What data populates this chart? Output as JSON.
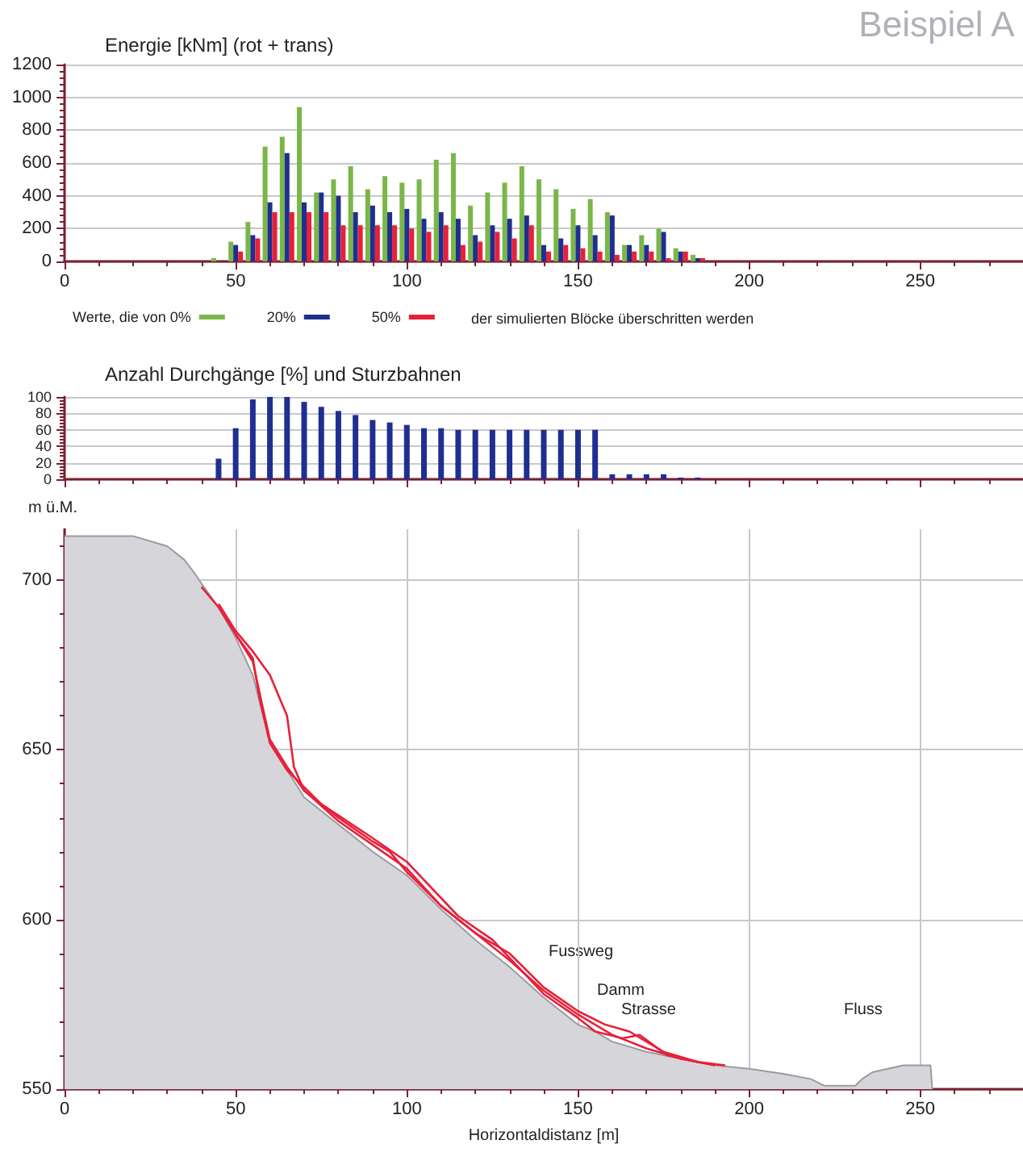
{
  "chart_data": [
    {
      "type": "bar",
      "title": "Energie [kNm] (rot + trans)",
      "annotations": [
        "Beispiel A",
        "der simulierten Blöcke überschritten werden"
      ],
      "x": [
        45,
        50,
        55,
        60,
        65,
        70,
        75,
        80,
        85,
        90,
        95,
        100,
        105,
        110,
        115,
        120,
        125,
        130,
        135,
        140,
        145,
        150,
        155,
        160,
        165,
        170,
        175,
        180,
        185
      ],
      "series": [
        {
          "name": "Werte, die von 0%",
          "color": "#7ab648",
          "values": [
            20,
            120,
            240,
            700,
            760,
            940,
            420,
            500,
            580,
            440,
            520,
            480,
            500,
            620,
            660,
            340,
            420,
            480,
            580,
            500,
            440,
            320,
            380,
            300,
            100,
            160,
            200,
            80,
            40
          ]
        },
        {
          "name": "20%",
          "color": "#1f2f8f",
          "values": [
            0,
            100,
            160,
            360,
            660,
            360,
            420,
            400,
            300,
            340,
            300,
            320,
            260,
            300,
            260,
            160,
            220,
            260,
            280,
            100,
            140,
            220,
            160,
            280,
            100,
            100,
            180,
            60,
            20
          ]
        },
        {
          "name": "50%",
          "color": "#e8203a",
          "values": [
            0,
            60,
            140,
            300,
            300,
            300,
            300,
            220,
            220,
            220,
            220,
            200,
            180,
            220,
            100,
            120,
            180,
            140,
            220,
            60,
            100,
            80,
            60,
            40,
            60,
            60,
            20,
            60,
            20
          ]
        }
      ],
      "xlim": [
        0,
        280
      ],
      "xticks": [
        0,
        50,
        100,
        150,
        200,
        250
      ],
      "ylim": [
        0,
        1200
      ],
      "yticks": [
        0,
        200,
        400,
        600,
        800,
        1000,
        1200
      ],
      "grid": "y",
      "legend": "bottom"
    },
    {
      "type": "bar",
      "title": "Anzahl Durchgänge [%] und Sturzbahnen",
      "x": [
        45,
        50,
        55,
        60,
        65,
        70,
        75,
        80,
        85,
        90,
        95,
        100,
        105,
        110,
        115,
        120,
        125,
        130,
        135,
        140,
        145,
        150,
        155,
        160,
        165,
        170,
        175,
        180,
        185
      ],
      "series": [
        {
          "color": "#1f2f8f",
          "values": [
            25,
            62,
            97,
            100,
            100,
            94,
            88,
            83,
            78,
            72,
            69,
            66,
            62,
            62,
            60,
            60,
            60,
            60,
            60,
            60,
            60,
            60,
            60,
            6,
            6,
            6,
            6,
            2,
            2
          ]
        }
      ],
      "xlim": [
        0,
        280
      ],
      "xticks": [
        0,
        50,
        100,
        150,
        200,
        250
      ],
      "ylim": [
        0,
        100
      ],
      "yticks": [
        0,
        20,
        40,
        60,
        80,
        100
      ],
      "grid": "y",
      "tick_labels": "y"
    },
    {
      "type": "area",
      "xlabel": "Horizontaldistanz [m]",
      "ylabel": "m ü.M.",
      "annotations": [
        "Fussweg",
        "Damm",
        "Strasse",
        "Fluss"
      ],
      "series": [
        {
          "color": "#d6d6da",
          "x": [
            0,
            20,
            30,
            35,
            38,
            40,
            45,
            50,
            55,
            58,
            60,
            65,
            70,
            80,
            90,
            100,
            110,
            120,
            130,
            140,
            150,
            155,
            160,
            170,
            180,
            190,
            200,
            210,
            218,
            222,
            225,
            231,
            233,
            236,
            245,
            253,
            253.5
          ],
          "values": [
            713,
            713,
            710,
            706,
            702,
            699,
            692,
            683,
            672,
            660,
            652,
            644,
            636,
            628,
            620,
            613,
            603,
            594,
            586,
            577,
            569,
            567,
            564,
            561,
            559,
            557,
            556,
            554.5,
            553,
            551,
            551,
            551,
            553,
            555,
            557,
            557,
            550
          ]
        },
        {
          "type": "line",
          "color": "#e8203a",
          "x": [
            40,
            45,
            50,
            55,
            58,
            60,
            65,
            70,
            80,
            90,
            100,
            110,
            120,
            130,
            140,
            150,
            160,
            170,
            180,
            190
          ],
          "values": [
            698,
            692,
            684,
            676,
            662,
            653,
            645,
            638,
            629,
            622,
            615,
            604,
            596,
            588,
            579,
            572,
            566,
            562,
            559,
            557
          ]
        },
        {
          "type": "line",
          "color": "#e8203a",
          "x": [
            45,
            50,
            55,
            60,
            65,
            67,
            70,
            80,
            90,
            95,
            100,
            110,
            120,
            130,
            140,
            150,
            158,
            165,
            170,
            175,
            185,
            193
          ],
          "values": [
            693,
            685,
            679,
            672,
            660,
            645,
            638,
            630,
            623,
            620,
            614,
            604,
            596,
            590,
            580,
            573,
            569,
            567,
            564,
            561,
            558,
            557
          ]
        },
        {
          "type": "line",
          "color": "#e8203a",
          "x": [
            50,
            55,
            57,
            60,
            65,
            75,
            90,
            100,
            115,
            125,
            140,
            150,
            155,
            163,
            168,
            172,
            176,
            185
          ],
          "values": [
            684,
            677,
            665,
            652,
            644,
            634,
            624,
            617,
            601,
            594,
            578,
            571,
            567,
            565,
            566,
            563,
            560,
            558
          ]
        }
      ],
      "xlim": [
        0,
        280
      ],
      "xticks": [
        0,
        50,
        100,
        150,
        200,
        250
      ],
      "ylim": [
        550,
        715
      ],
      "yticks": [
        550,
        600,
        650,
        700
      ],
      "grid": true
    }
  ]
}
